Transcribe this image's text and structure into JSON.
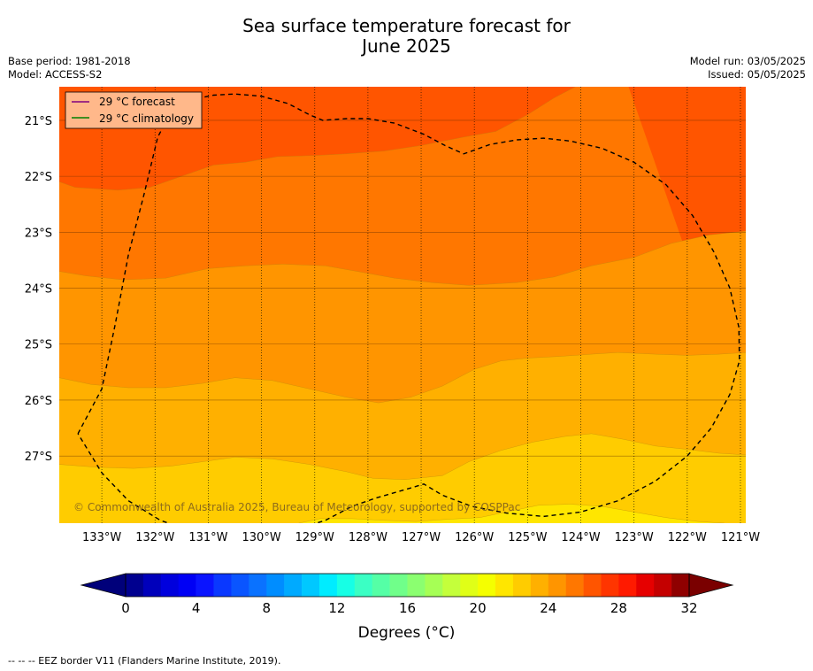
{
  "header": {
    "title_line1": "Sea surface temperature forecast for",
    "title_line2": "June 2025",
    "base_period": "Base period: 1981-2018",
    "model": "Model: ACCESS-S2",
    "model_run": "Model run: 03/05/2025",
    "issued": "Issued: 05/05/2025"
  },
  "chart_data": {
    "type": "heatmap",
    "title": "Sea surface temperature forecast for June 2025",
    "x_range": [
      -133.8,
      -120.9
    ],
    "y_range": [
      -28.2,
      -20.4
    ],
    "xticks": [
      "133°W",
      "132°W",
      "131°W",
      "130°W",
      "129°W",
      "128°W",
      "127°W",
      "126°W",
      "125°W",
      "124°W",
      "123°W",
      "122°W",
      "121°W"
    ],
    "yticks": [
      "21°S",
      "22°S",
      "23°S",
      "24°S",
      "25°S",
      "26°S",
      "27°S"
    ],
    "grid": true,
    "legend": {
      "placement": "top-left",
      "entries": [
        {
          "label": "29 °C  forecast",
          "color": "#800080"
        },
        {
          "label": "29 °C  climatology",
          "color": "#008000"
        }
      ]
    },
    "temperature_bands": [
      {
        "range": "28-29",
        "color": "#ff5500"
      },
      {
        "range": "27-28",
        "color": "#ff7700"
      },
      {
        "range": "26-27",
        "color": "#ff9500"
      },
      {
        "range": "25-26",
        "color": "#ffb000"
      },
      {
        "range": "24-25",
        "color": "#ffcc00"
      },
      {
        "range": "23-24",
        "color": "#ffe600"
      }
    ],
    "band_boundaries_lat": [
      {
        "name": "28C",
        "points": [
          [
            -133.8,
            -22.1
          ],
          [
            -133.5,
            -22.2
          ],
          [
            -132.7,
            -22.25
          ],
          [
            -132.1,
            -22.2
          ],
          [
            -131.5,
            -22.0
          ],
          [
            -130.9,
            -21.8
          ],
          [
            -130.3,
            -21.75
          ],
          [
            -129.7,
            -21.65
          ],
          [
            -129.0,
            -21.63
          ],
          [
            -128.4,
            -21.6
          ],
          [
            -127.7,
            -21.55
          ],
          [
            -127.0,
            -21.45
          ],
          [
            -126.2,
            -21.3
          ],
          [
            -125.6,
            -21.2
          ],
          [
            -125.0,
            -20.9
          ],
          [
            -124.5,
            -20.6
          ],
          [
            -124.1,
            -20.4
          ]
        ]
      },
      {
        "name": "27C",
        "points": [
          [
            -133.8,
            -23.7
          ],
          [
            -133.3,
            -23.78
          ],
          [
            -132.6,
            -23.85
          ],
          [
            -131.8,
            -23.82
          ],
          [
            -131.0,
            -23.65
          ],
          [
            -130.3,
            -23.6
          ],
          [
            -129.6,
            -23.57
          ],
          [
            -128.8,
            -23.6
          ],
          [
            -128.2,
            -23.7
          ],
          [
            -127.5,
            -23.82
          ],
          [
            -126.8,
            -23.9
          ],
          [
            -126.1,
            -23.95
          ],
          [
            -125.2,
            -23.9
          ],
          [
            -124.5,
            -23.8
          ],
          [
            -123.8,
            -23.6
          ],
          [
            -123.0,
            -23.45
          ],
          [
            -122.3,
            -23.2
          ],
          [
            -121.6,
            -23.05
          ],
          [
            -120.9,
            -22.98
          ]
        ]
      },
      {
        "name": "26C",
        "points": [
          [
            -133.8,
            -25.6
          ],
          [
            -133.2,
            -25.72
          ],
          [
            -132.5,
            -25.78
          ],
          [
            -131.8,
            -25.78
          ],
          [
            -131.1,
            -25.7
          ],
          [
            -130.5,
            -25.6
          ],
          [
            -129.8,
            -25.65
          ],
          [
            -129.1,
            -25.8
          ],
          [
            -128.4,
            -25.95
          ],
          [
            -127.8,
            -26.05
          ],
          [
            -127.2,
            -25.95
          ],
          [
            -126.6,
            -25.75
          ],
          [
            -126.0,
            -25.45
          ],
          [
            -125.5,
            -25.3
          ],
          [
            -125.0,
            -25.25
          ],
          [
            -124.4,
            -25.22
          ],
          [
            -123.8,
            -25.18
          ],
          [
            -123.3,
            -25.15
          ],
          [
            -122.6,
            -25.18
          ],
          [
            -122.0,
            -25.2
          ],
          [
            -121.4,
            -25.18
          ],
          [
            -120.9,
            -25.15
          ]
        ]
      },
      {
        "name": "25C",
        "points": [
          [
            -133.8,
            -27.15
          ],
          [
            -133.1,
            -27.2
          ],
          [
            -132.4,
            -27.22
          ],
          [
            -131.7,
            -27.18
          ],
          [
            -131.1,
            -27.1
          ],
          [
            -130.5,
            -27.02
          ],
          [
            -129.8,
            -27.05
          ],
          [
            -129.1,
            -27.15
          ],
          [
            -128.4,
            -27.28
          ],
          [
            -127.9,
            -27.4
          ],
          [
            -127.3,
            -27.42
          ],
          [
            -126.6,
            -27.35
          ],
          [
            -126.1,
            -27.1
          ],
          [
            -125.5,
            -26.9
          ],
          [
            -124.9,
            -26.75
          ],
          [
            -124.3,
            -26.65
          ],
          [
            -123.8,
            -26.6
          ],
          [
            -123.2,
            -26.7
          ],
          [
            -122.6,
            -26.82
          ],
          [
            -122.0,
            -26.88
          ],
          [
            -121.4,
            -26.95
          ],
          [
            -120.9,
            -26.98
          ]
        ]
      },
      {
        "name": "24C",
        "points": [
          [
            -129.3,
            -28.2
          ],
          [
            -128.9,
            -28.12
          ],
          [
            -128.3,
            -28.12
          ],
          [
            -127.7,
            -28.15
          ],
          [
            -127.1,
            -28.17
          ],
          [
            -126.5,
            -28.13
          ],
          [
            -125.9,
            -28.1
          ],
          [
            -125.4,
            -28.0
          ],
          [
            -124.8,
            -27.88
          ],
          [
            -124.2,
            -27.86
          ],
          [
            -123.6,
            -27.9
          ],
          [
            -123.0,
            -28.0
          ],
          [
            -122.4,
            -28.1
          ],
          [
            -121.8,
            -28.17
          ],
          [
            -121.3,
            -28.2
          ]
        ]
      }
    ],
    "eez_border": [
      [
        -133.45,
        -26.6
      ],
      [
        -133.0,
        -25.8
      ],
      [
        -132.75,
        -24.65
      ],
      [
        -132.5,
        -23.4
      ],
      [
        -132.2,
        -22.3
      ],
      [
        -131.95,
        -21.3
      ],
      [
        -131.7,
        -20.85
      ],
      [
        -131.3,
        -20.63
      ],
      [
        -130.9,
        -20.55
      ],
      [
        -130.5,
        -20.53
      ],
      [
        -130.0,
        -20.57
      ],
      [
        -129.5,
        -20.7
      ],
      [
        -129.1,
        -20.9
      ],
      [
        -128.85,
        -21.0
      ],
      [
        -128.4,
        -20.97
      ],
      [
        -128.0,
        -20.97
      ],
      [
        -127.5,
        -21.05
      ],
      [
        -126.95,
        -21.25
      ],
      [
        -126.55,
        -21.45
      ],
      [
        -126.2,
        -21.6
      ],
      [
        -125.7,
        -21.43
      ],
      [
        -125.2,
        -21.35
      ],
      [
        -124.7,
        -21.32
      ],
      [
        -124.2,
        -21.37
      ],
      [
        -123.6,
        -21.5
      ],
      [
        -123.0,
        -21.75
      ],
      [
        -122.4,
        -22.15
      ],
      [
        -121.9,
        -22.7
      ],
      [
        -121.5,
        -23.35
      ],
      [
        -121.2,
        -24.0
      ],
      [
        -121.03,
        -24.7
      ],
      [
        -121.02,
        -25.3
      ],
      [
        -121.2,
        -25.9
      ],
      [
        -121.55,
        -26.5
      ],
      [
        -122.0,
        -27.0
      ],
      [
        -122.6,
        -27.45
      ],
      [
        -123.3,
        -27.8
      ],
      [
        -124.0,
        -28.0
      ],
      [
        -124.7,
        -28.08
      ],
      [
        -125.4,
        -28.02
      ],
      [
        -126.05,
        -27.9
      ],
      [
        -126.6,
        -27.7
      ],
      [
        -126.95,
        -27.5
      ],
      [
        -127.3,
        -27.6
      ],
      [
        -127.85,
        -27.75
      ],
      [
        -128.3,
        -27.9
      ],
      [
        -128.8,
        -28.15
      ],
      [
        -129.4,
        -28.33
      ],
      [
        -130.0,
        -28.42
      ],
      [
        -130.6,
        -28.45
      ],
      [
        -131.3,
        -28.35
      ],
      [
        -131.9,
        -28.15
      ],
      [
        -132.5,
        -27.8
      ],
      [
        -133.0,
        -27.3
      ],
      [
        -133.45,
        -26.6
      ]
    ],
    "colorbar": {
      "range": [
        0,
        32
      ],
      "step": 1.4,
      "tick_labels": [
        "0",
        "4",
        "8",
        "12",
        "16",
        "20",
        "24",
        "28",
        "32"
      ],
      "label": "Degrees (°C)",
      "colors": [
        "#00008f",
        "#0000bb",
        "#0000dd",
        "#0000f5",
        "#0a14ff",
        "#0a38ff",
        "#0a55ff",
        "#0a72ff",
        "#008dff",
        "#00aaff",
        "#00c8ff",
        "#00ecff",
        "#17ffe5",
        "#3bffc4",
        "#55ffa6",
        "#70ff8a",
        "#8bff70",
        "#a6ff55",
        "#c4ff3b",
        "#e0ff17",
        "#f5ff00",
        "#ffe600",
        "#ffcc00",
        "#ffb000",
        "#ff9500",
        "#ff7700",
        "#ff5500",
        "#ff3500",
        "#ff1a00",
        "#e60000",
        "#c40000",
        "#8f0000"
      ],
      "under_color": "#00007a",
      "over_color": "#7a0000"
    }
  },
  "copyright": "© Commonwealth of Australia 2025, Bureau of Meteorology, supported by COSPPac",
  "footnote": "--  --  -- EEZ border V11 (Flanders Marine Institute, 2019)."
}
